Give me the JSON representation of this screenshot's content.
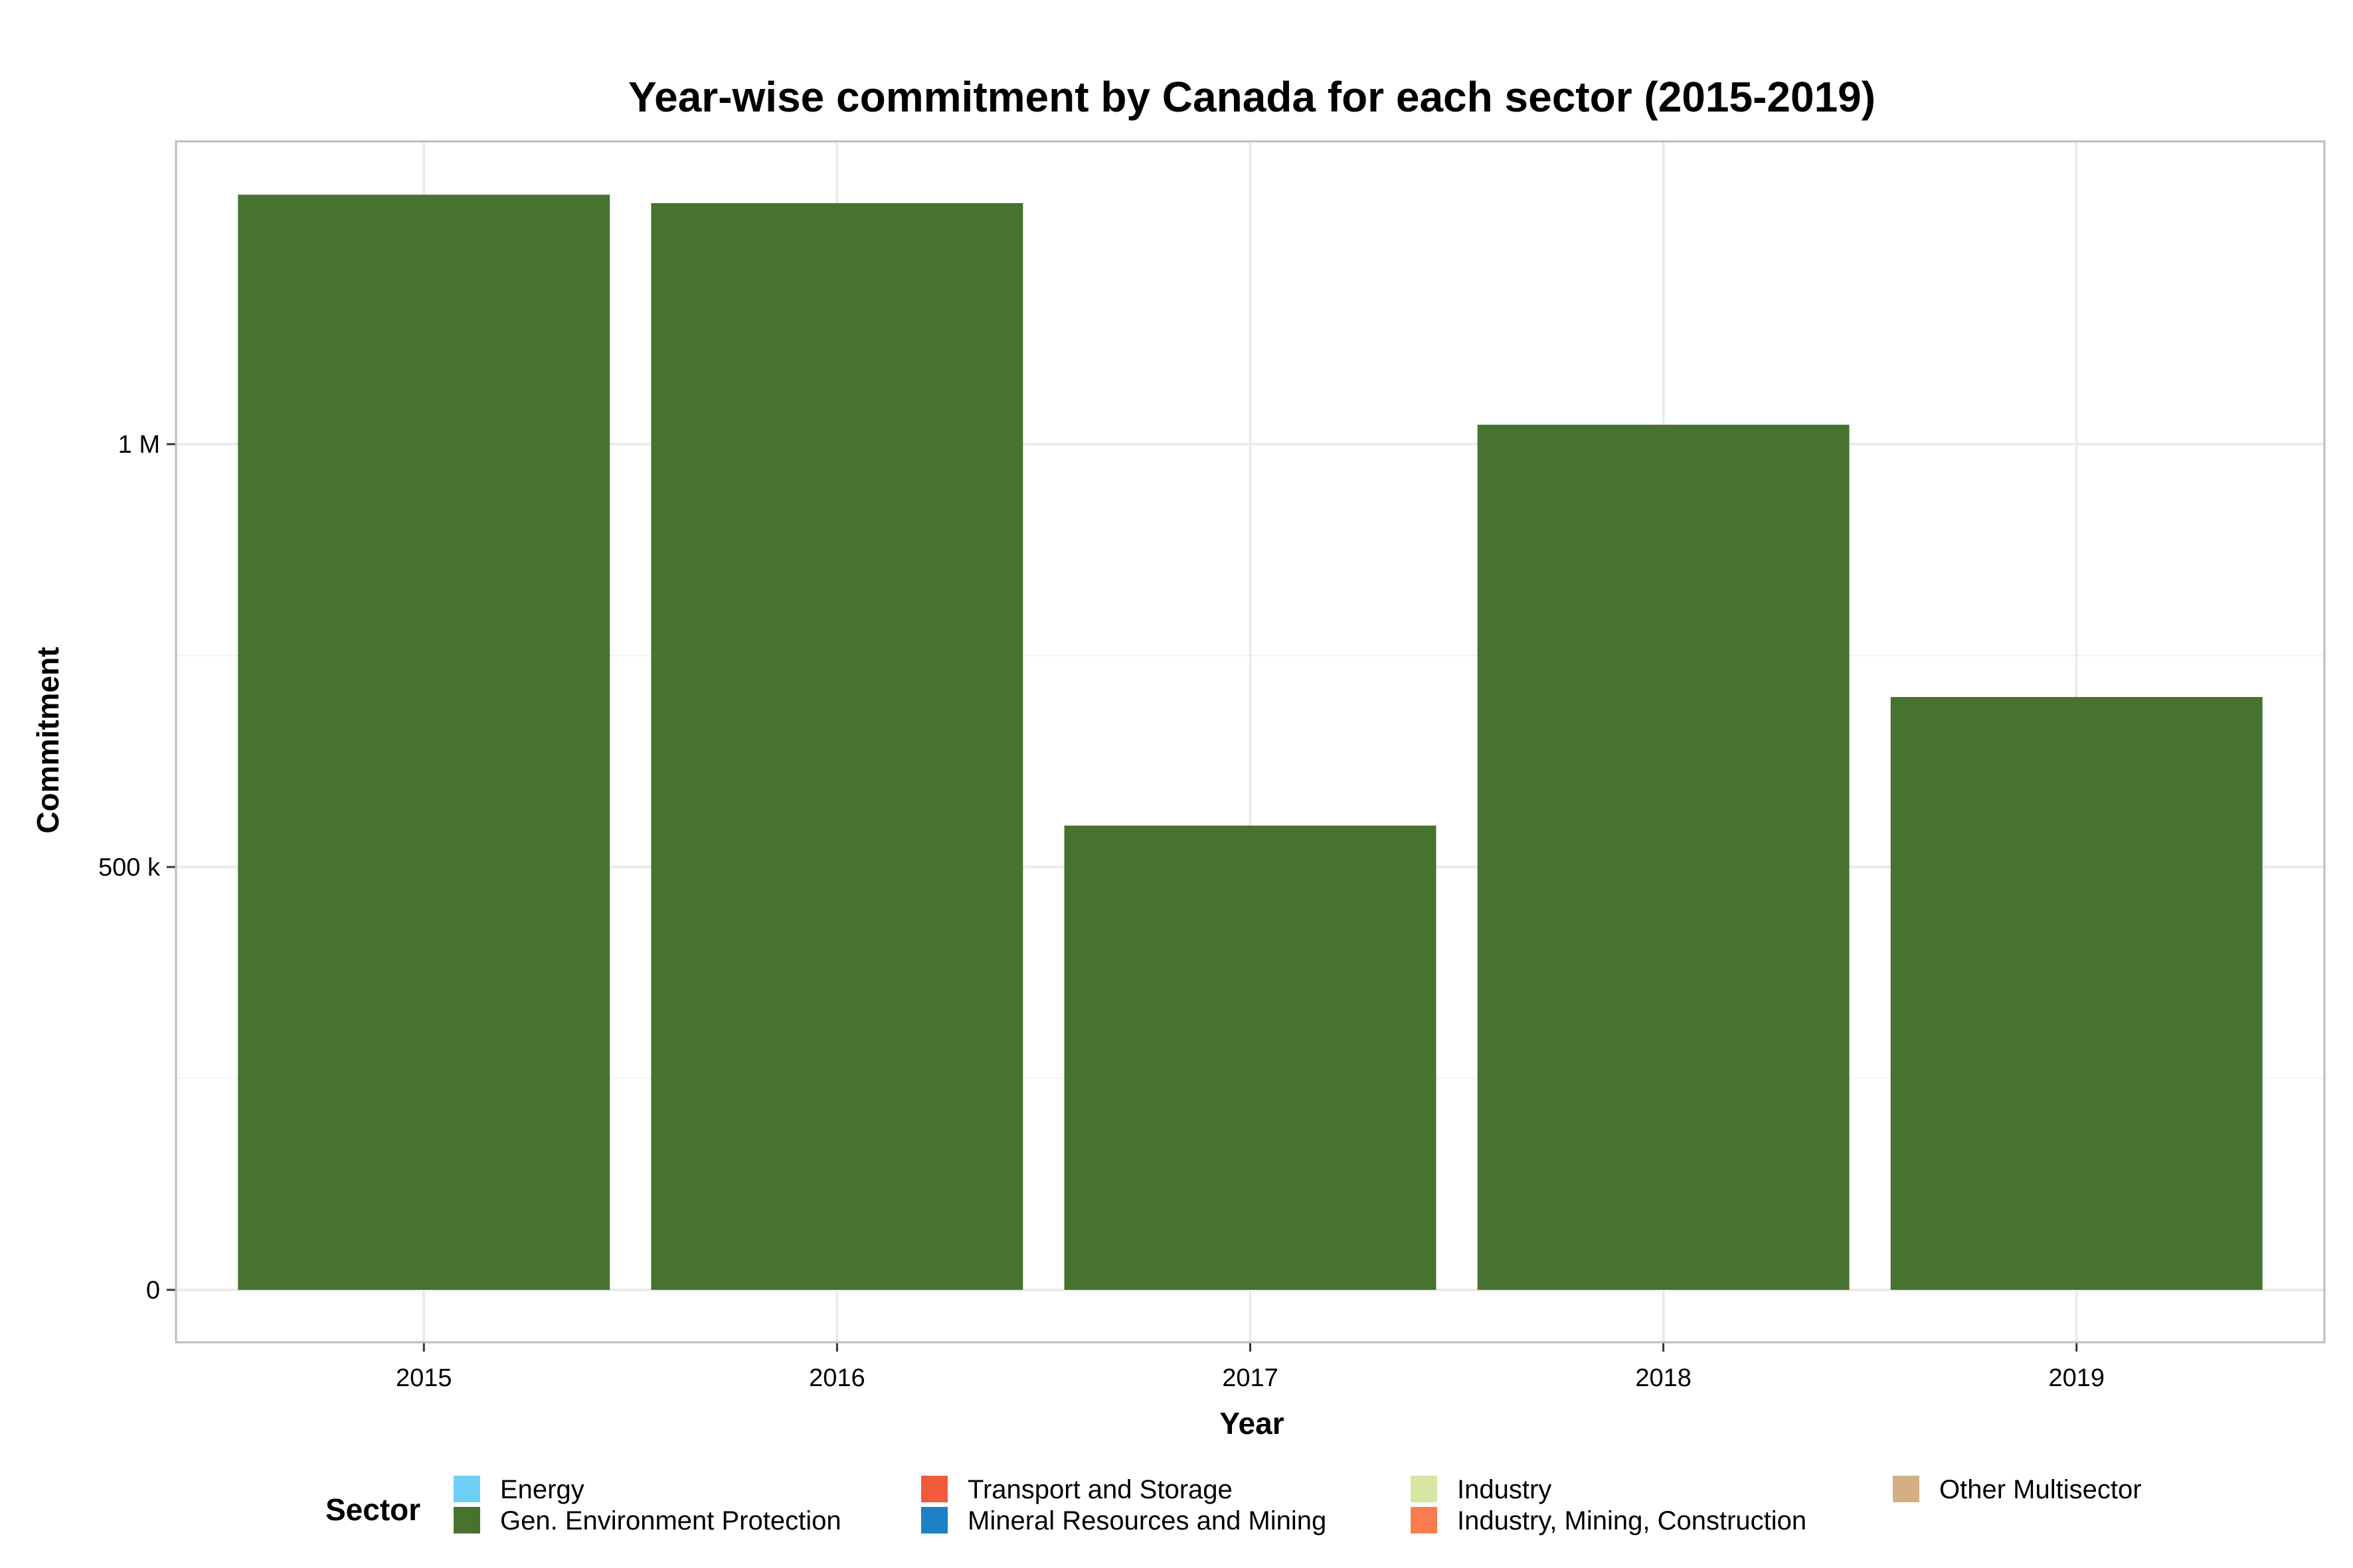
{
  "chart_data": {
    "type": "bar",
    "title": "Year-wise commitment by Canada for each sector (2015-2019)",
    "xlabel": "Year",
    "ylabel": "Commitment",
    "categories": [
      "2015",
      "2016",
      "2017",
      "2018",
      "2019"
    ],
    "series": [
      {
        "name": "Gen. Environment Protection",
        "values": [
          1295000,
          1285000,
          549000,
          1023000,
          701000
        ]
      }
    ],
    "ylim": [
      -62000,
      1358000
    ],
    "yticks": [
      {
        "value": 0,
        "label": "0"
      },
      {
        "value": 500000,
        "label": "500 k"
      },
      {
        "value": 1000000,
        "label": "1 M"
      }
    ],
    "grid": true,
    "legend": {
      "position": "bottom",
      "title": "Sector",
      "items": [
        {
          "label": "Energy",
          "color": "#6ECFF6"
        },
        {
          "label": "Gen. Environment Protection",
          "color": "#48722F"
        },
        {
          "label": "Transport and Storage",
          "color": "#F15A3A"
        },
        {
          "label": "Mineral Resources and Mining",
          "color": "#1C80C4"
        },
        {
          "label": "Industry",
          "color": "#D8E6A3"
        },
        {
          "label": "Industry, Mining, Construction",
          "color": "#F97C4E"
        },
        {
          "label": "Other Multisector",
          "color": "#D4AF83"
        }
      ]
    },
    "bar_color": "#48722F"
  }
}
